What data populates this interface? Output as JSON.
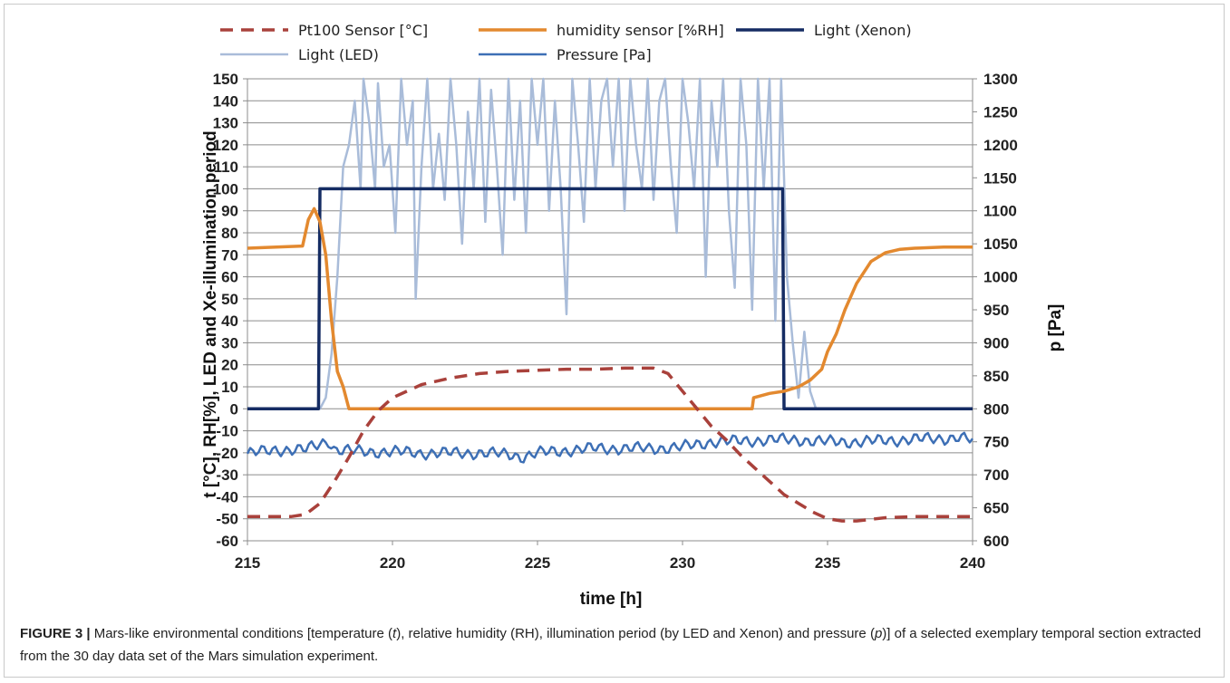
{
  "caption": {
    "label": "FIGURE 3 |",
    "pre1": "Mars-like environmental conditions [temperature (",
    "t": "t",
    "pre2": "), relative humidity (RH), illumination period (by LED and Xenon) and pressure (",
    "p": "p",
    "post": ")] of a selected exemplary temporal section extracted from the 30 day data set of the Mars simulation experiment."
  },
  "colors": {
    "pt100": "#a9413b",
    "humidity": "#e3892f",
    "xenon": "#152c63",
    "led": "#a9bcd9",
    "pressure": "#3d6fb5",
    "grid": "#8c8c8c"
  },
  "chart_data": {
    "type": "line",
    "xlabel": "time [h]",
    "ylabel_left": "t [°C], RH[%], LED and Xe-illumination period",
    "ylabel_right": "p [Pa]",
    "xlim": [
      215,
      240
    ],
    "ylim_left": [
      -60,
      150
    ],
    "ylim_right": [
      600,
      1300
    ],
    "xticks": [
      215,
      220,
      225,
      230,
      235,
      240
    ],
    "yticks_left": [
      -60,
      -50,
      -40,
      -30,
      -20,
      -10,
      0,
      10,
      20,
      30,
      40,
      50,
      60,
      70,
      80,
      90,
      100,
      110,
      120,
      130,
      140,
      150
    ],
    "yticks_right": [
      600,
      650,
      700,
      750,
      800,
      850,
      900,
      950,
      1000,
      1050,
      1100,
      1150,
      1200,
      1250,
      1300
    ],
    "grid": true,
    "legend_position": "top",
    "series": [
      {
        "name": "Pt100 Sensor [°C]",
        "axis": "left",
        "style": "dashed",
        "x": [
          215,
          216.5,
          217,
          217.5,
          218,
          218.5,
          219,
          219.5,
          220,
          221,
          222,
          223,
          224,
          225,
          226,
          227,
          228,
          229,
          229.5,
          230,
          230.5,
          231,
          231.5,
          232,
          232.5,
          233,
          233.5,
          234,
          234.5,
          235,
          235.5,
          236,
          237,
          238,
          239,
          240
        ],
        "y": [
          -49,
          -49,
          -48,
          -43,
          -33,
          -22,
          -10,
          -1,
          5,
          11,
          14,
          16,
          17,
          17.5,
          18,
          18,
          18.5,
          18.5,
          16,
          8,
          0,
          -8,
          -14,
          -21,
          -27,
          -33,
          -39,
          -43,
          -47,
          -50,
          -51,
          -51,
          -49.5,
          -49,
          -49,
          -49
        ]
      },
      {
        "name": "humidity sensor [%RH]",
        "axis": "left",
        "style": "solid",
        "x": [
          215,
          216,
          216.9,
          217.1,
          217.3,
          217.5,
          217.7,
          217.9,
          218.1,
          218.3,
          218.5,
          219,
          225,
          230,
          232.4,
          232.45,
          233,
          233.5,
          234,
          234.4,
          234.8,
          235,
          235.3,
          235.6,
          236,
          236.5,
          237,
          237.5,
          238,
          239,
          240
        ],
        "y": [
          73,
          73.5,
          74,
          86,
          91,
          85,
          70,
          40,
          17,
          10,
          0,
          0,
          0,
          0,
          0,
          5,
          7,
          8,
          10,
          13,
          18,
          26,
          34,
          45,
          57,
          67,
          71,
          72.5,
          73,
          73.5,
          73.5
        ]
      },
      {
        "name": "Light (Xenon)",
        "axis": "left",
        "style": "solid",
        "x": [
          215,
          217.45,
          217.5,
          233.45,
          233.5,
          240
        ],
        "y": [
          0,
          0,
          100,
          100,
          0,
          0
        ]
      },
      {
        "name": "Light (LED)",
        "axis": "left",
        "style": "solid",
        "x": [
          215,
          217.5,
          217.7,
          217.9,
          218.1,
          218.3,
          218.5,
          218.7,
          218.9,
          219.0,
          219.2,
          219.4,
          219.5,
          219.7,
          219.9,
          220.1,
          220.3,
          220.5,
          220.7,
          220.8,
          221.0,
          221.2,
          221.4,
          221.6,
          221.8,
          222.0,
          222.2,
          222.4,
          222.6,
          222.8,
          223.0,
          223.2,
          223.4,
          223.6,
          223.8,
          224.0,
          224.2,
          224.4,
          224.6,
          224.8,
          225.0,
          225.2,
          225.4,
          225.6,
          225.8,
          226.0,
          226.2,
          226.4,
          226.6,
          226.8,
          227.0,
          227.2,
          227.4,
          227.6,
          227.8,
          228.0,
          228.2,
          228.4,
          228.6,
          228.8,
          229.0,
          229.2,
          229.4,
          229.6,
          229.8,
          230.0,
          230.2,
          230.4,
          230.6,
          230.8,
          231.0,
          231.2,
          231.4,
          231.6,
          231.8,
          232.0,
          232.2,
          232.4,
          232.6,
          232.8,
          233.0,
          233.2,
          233.4,
          233.6,
          233.8,
          234.0,
          234.2,
          234.4,
          234.6,
          240
        ],
        "y": [
          0,
          0,
          5,
          25,
          60,
          110,
          120,
          140,
          100,
          150,
          130,
          100,
          148,
          110,
          120,
          80,
          150,
          120,
          140,
          50,
          110,
          150,
          100,
          125,
          95,
          150,
          120,
          75,
          135,
          100,
          150,
          85,
          145,
          110,
          70,
          150,
          95,
          140,
          80,
          150,
          120,
          150,
          90,
          140,
          100,
          43,
          150,
          120,
          85,
          150,
          100,
          140,
          150,
          110,
          150,
          90,
          150,
          120,
          100,
          150,
          95,
          140,
          150,
          110,
          80,
          150,
          130,
          100,
          150,
          60,
          140,
          110,
          150,
          90,
          55,
          150,
          120,
          45,
          150,
          100,
          150,
          40,
          150,
          60,
          30,
          5,
          35,
          8,
          0,
          0
        ]
      },
      {
        "name": "Pressure [Pa]",
        "axis": "right",
        "style": "solid",
        "x": [
          215,
          216,
          217,
          217.8,
          218,
          219,
          220,
          221,
          222,
          223,
          224,
          224.5,
          225,
          226,
          227,
          228,
          229,
          230,
          230.5,
          231,
          232,
          233,
          234,
          235,
          236,
          237,
          238,
          239,
          239.5,
          240
        ],
        "y": [
          732,
          738,
          738,
          752,
          738,
          735,
          735,
          733,
          733,
          733,
          731,
          727,
          733,
          737,
          740,
          740,
          740,
          742,
          746,
          750,
          751,
          753,
          753,
          750,
          750,
          752,
          754,
          755,
          757,
          752
        ]
      }
    ]
  }
}
